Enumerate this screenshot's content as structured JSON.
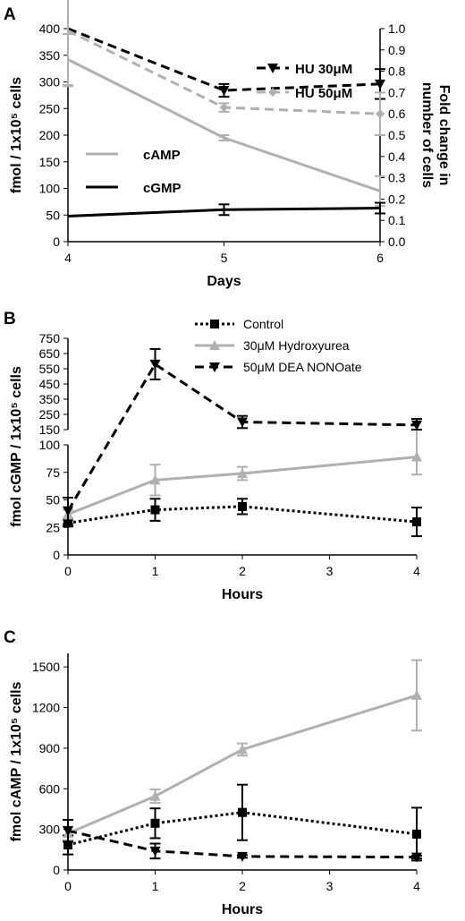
{
  "chart_data": [
    {
      "panel": "A",
      "type": "line",
      "xlabel": "Days",
      "ylabel": "fmol / 1x10⁵ cells",
      "y2label": "Fold change in number of cells",
      "x": [
        4,
        5,
        6
      ],
      "xlim": [
        4,
        6
      ],
      "ylim": [
        0,
        400
      ],
      "y2lim": [
        0,
        1.0
      ],
      "xticks": [
        "4",
        "5",
        "6"
      ],
      "yticks": [
        "0",
        "50",
        "100",
        "150",
        "200",
        "250",
        "300",
        "350",
        "400"
      ],
      "y2ticks": [
        "0.0",
        "0.1",
        "0.2",
        "0.3",
        "0.4",
        "0.5",
        "0.6",
        "0.7",
        "0.8",
        "0.9",
        "1.0"
      ],
      "series": [
        {
          "name": "cAMP",
          "axis": "left",
          "color": "#b0b0b0",
          "style": "solid",
          "marker": "none",
          "values": [
            342,
            195,
            95
          ],
          "errors": [
            48,
            5,
            28
          ]
        },
        {
          "name": "cGMP",
          "axis": "left",
          "color": "#000000",
          "style": "solid",
          "marker": "none",
          "values": [
            48,
            60,
            63
          ],
          "errors": [
            0,
            10,
            10
          ]
        },
        {
          "name": "HU 30μM",
          "axis": "right",
          "color": "#000000",
          "style": "dashed",
          "marker": "triangle-down",
          "values": [
            1.0,
            0.71,
            0.74
          ],
          "errors": [
            0,
            0.03,
            0.07
          ]
        },
        {
          "name": "HU 50μM",
          "axis": "right",
          "color": "#b0b0b0",
          "style": "dashed",
          "marker": "diamond",
          "values": [
            0.99,
            0.63,
            0.6
          ],
          "errors": [
            0.26,
            0.02,
            0.1
          ]
        }
      ]
    },
    {
      "panel": "B",
      "type": "line",
      "xlabel": "Hours",
      "ylabel": "fmol cGMP / 1x10⁵ cells",
      "x": [
        0,
        1,
        2,
        4
      ],
      "xlim": [
        0,
        4
      ],
      "ylim": [
        0,
        750
      ],
      "axis_break": {
        "lower": [
          0,
          100
        ],
        "upper": [
          150,
          750
        ]
      },
      "xticks": [
        "0",
        "1",
        "2",
        "3",
        "4"
      ],
      "yticks_lower": [
        "0",
        "25",
        "50",
        "75",
        "100"
      ],
      "yticks_upper": [
        "150",
        "250",
        "350",
        "450",
        "550",
        "650",
        "750"
      ],
      "series": [
        {
          "name": "Control",
          "color": "#000000",
          "style": "dotted",
          "marker": "square",
          "values": [
            29,
            41,
            44,
            30
          ],
          "errors": [
            3,
            10,
            7,
            13
          ]
        },
        {
          "name": "30μM Hydroxyurea",
          "color": "#b0b0b0",
          "style": "solid",
          "marker": "triangle-up",
          "values": [
            37,
            68,
            74,
            89
          ],
          "errors": [
            4,
            14,
            6,
            16
          ]
        },
        {
          "name": "50μM DEA NONOate",
          "color": "#000000",
          "style": "dashed",
          "marker": "triangle-down",
          "values": [
            40,
            580,
            200,
            180
          ],
          "errors": [
            12,
            100,
            40,
            40
          ]
        }
      ]
    },
    {
      "panel": "C",
      "type": "line",
      "xlabel": "Hours",
      "ylabel": "fmol cAMP / 1x10⁵ cells",
      "x": [
        0,
        1,
        2,
        4
      ],
      "xlim": [
        0,
        4
      ],
      "ylim": [
        0,
        1600
      ],
      "xticks": [
        "0",
        "1",
        "2",
        "3",
        "4"
      ],
      "yticks": [
        "0",
        "300",
        "600",
        "900",
        "1200",
        "1500"
      ],
      "series": [
        {
          "name": "Control",
          "color": "#000000",
          "style": "dotted",
          "marker": "square",
          "values": [
            185,
            345,
            425,
            265
          ],
          "errors": [
            70,
            110,
            205,
            195
          ]
        },
        {
          "name": "30μM Hydroxyurea",
          "color": "#b0b0b0",
          "style": "solid",
          "marker": "triangle-up",
          "values": [
            270,
            545,
            890,
            1290
          ],
          "errors": [
            50,
            50,
            45,
            260
          ]
        },
        {
          "name": "50μM DEA NONOate",
          "color": "#000000",
          "style": "dashed",
          "marker": "triangle-down",
          "values": [
            290,
            140,
            100,
            95
          ],
          "errors": [
            80,
            55,
            10,
            10
          ]
        }
      ]
    }
  ]
}
